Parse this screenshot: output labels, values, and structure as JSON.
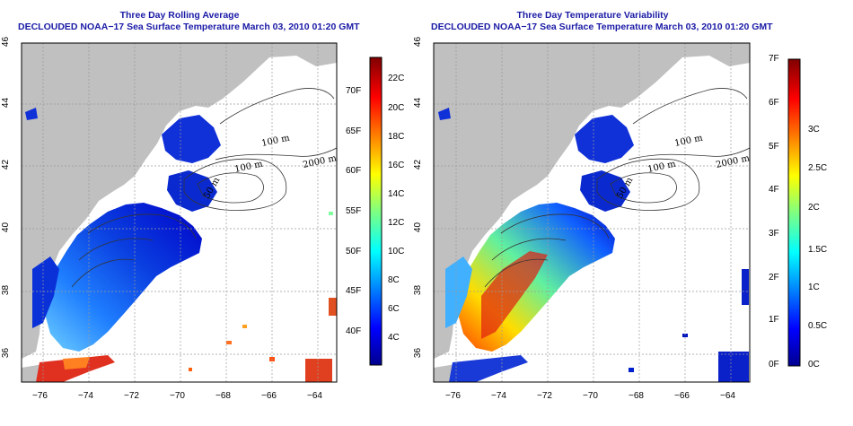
{
  "left_panel": {
    "title_line1": "Three Day Rolling Average",
    "title_line2": "DECLOUDED NOAA−17 Sea Surface Temperature March 03, 2010 01:20 GMT",
    "colorbar_f": [
      "40F",
      "45F",
      "50F",
      "55F",
      "60F",
      "65F",
      "70F"
    ],
    "colorbar_c": [
      "4C",
      "6C",
      "8C",
      "10C",
      "12C",
      "14C",
      "16C",
      "18C",
      "20C",
      "22C"
    ]
  },
  "right_panel": {
    "title_line1": "Three Day Temperature Variability",
    "title_line2": "DECLOUDED NOAA−17 Sea Surface Temperature March 03, 2010 01:20 GMT",
    "colorbar_f": [
      "0F",
      "1F",
      "2F",
      "3F",
      "4F",
      "5F",
      "6F",
      "7F"
    ],
    "colorbar_c": [
      "0C",
      "0.5C",
      "1C",
      "1.5C",
      "2C",
      "2.5C",
      "3C"
    ]
  },
  "axes": {
    "lon_ticks": [
      "−76",
      "−74",
      "−72",
      "−70",
      "−68",
      "−66",
      "−64"
    ],
    "lat_ticks": [
      "36",
      "38",
      "40",
      "42",
      "44",
      "46"
    ]
  },
  "contour_labels": [
    "100 m",
    "2000 m",
    "100 m",
    "50 m"
  ],
  "colors": {
    "land": "#c0c0c0",
    "title": "#1a1aa6",
    "ocean_nodata": "#ffffff",
    "grid": "#9a9a9a"
  }
}
